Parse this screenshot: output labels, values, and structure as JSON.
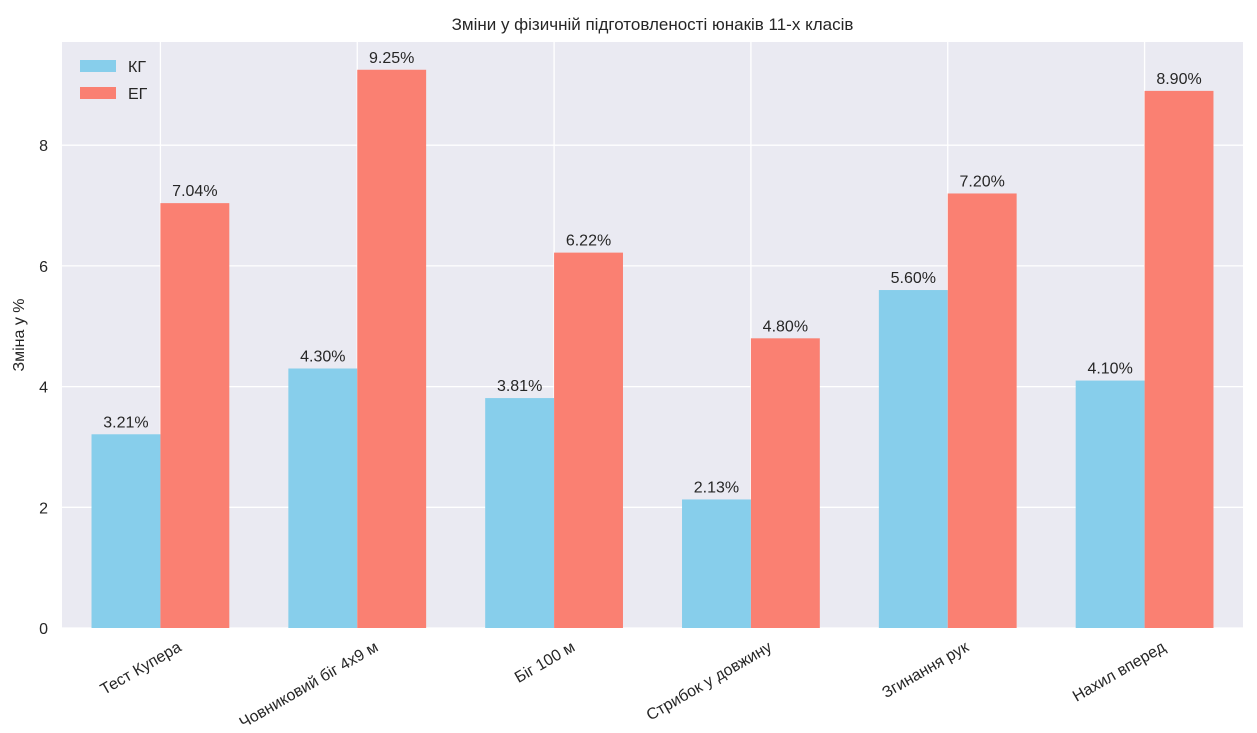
{
  "chart_data": {
    "type": "bar",
    "title": "Зміни у фізичній підготовленості юнаків 11-х класів",
    "xlabel": "",
    "ylabel": "Зміна у %",
    "categories": [
      "Тест Купера",
      "Човниковий біг 4x9 м",
      "Біг 100 м",
      "Стрибок у довжину",
      "Згинання рук",
      "Нахил вперед"
    ],
    "series": [
      {
        "name": "КГ",
        "color": "#87ceeb",
        "values": [
          3.21,
          4.3,
          3.81,
          2.13,
          5.6,
          4.1
        ],
        "labels": [
          "3.21%",
          "4.30%",
          "3.81%",
          "2.13%",
          "5.60%",
          "4.10%"
        ]
      },
      {
        "name": "ЕГ",
        "color": "#fa8072",
        "values": [
          7.04,
          9.25,
          6.22,
          4.8,
          7.2,
          8.9
        ],
        "labels": [
          "7.04%",
          "9.25%",
          "6.22%",
          "4.80%",
          "7.20%",
          "8.90%"
        ]
      }
    ],
    "ylim": [
      0,
      9.71
    ],
    "yticks": [
      0,
      2,
      4,
      6,
      8
    ],
    "ytick_labels": [
      "0",
      "2",
      "4",
      "6",
      "8"
    ],
    "grid": true,
    "legend_position": "top-left",
    "background_color": "#eaeaf2",
    "grid_color": "#ffffff"
  }
}
